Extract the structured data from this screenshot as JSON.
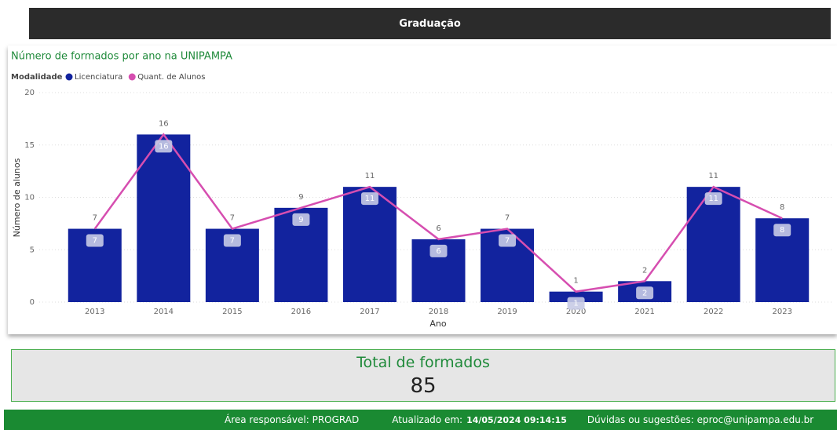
{
  "header": {
    "title": "Graduação"
  },
  "chart_data": {
    "type": "bar",
    "title": "Número de formados por ano na UNIPAMPA",
    "legend_title": "Modalidade",
    "x_label": "Ano",
    "y_label": "Número de alunos",
    "categories": [
      "2013",
      "2014",
      "2015",
      "2016",
      "2017",
      "2018",
      "2019",
      "2020",
      "2021",
      "2022",
      "2023"
    ],
    "series": [
      {
        "name": "Licenciatura",
        "type": "bar",
        "color": "#12239e",
        "values": [
          7,
          16,
          7,
          9,
          11,
          6,
          7,
          1,
          2,
          11,
          8
        ]
      },
      {
        "name": "Quant. de  Alunos",
        "type": "line",
        "color": "#d64eb0",
        "values": [
          7,
          16,
          7,
          9,
          11,
          6,
          7,
          1,
          2,
          11,
          8
        ]
      }
    ],
    "ylim": [
      0,
      20
    ],
    "yticks": [
      0,
      5,
      10,
      15,
      20
    ],
    "grid": true
  },
  "total": {
    "label": "Total de formados",
    "value": 85
  },
  "footer": {
    "area": "Área responsável: PROGRAD",
    "updated_label": "Atualizado em:",
    "updated_value": "14/05/2024 09:14:15",
    "contact": "Dúvidas ou sugestões: eproc@unipampa.edu.br"
  }
}
